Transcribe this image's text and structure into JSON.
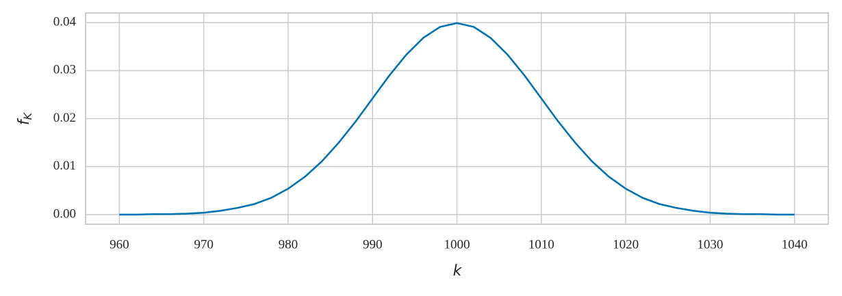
{
  "chart_data": {
    "type": "line",
    "xlabel": "k",
    "ylabel": {
      "base": "f",
      "sub": "K"
    },
    "x": [
      960,
      962,
      964,
      966,
      968,
      970,
      972,
      974,
      976,
      978,
      980,
      982,
      984,
      986,
      988,
      990,
      992,
      994,
      996,
      998,
      1000,
      1002,
      1004,
      1006,
      1008,
      1010,
      1012,
      1014,
      1016,
      1018,
      1020,
      1022,
      1024,
      1026,
      1028,
      1030,
      1032,
      1034,
      1036,
      1038,
      1040
    ],
    "series": [
      {
        "color": "#0173b2",
        "values": [
          0.0,
          0.0,
          0.0001,
          0.0001,
          0.0002,
          0.0004,
          0.0008,
          0.0014,
          0.0022,
          0.0035,
          0.0054,
          0.0079,
          0.0111,
          0.015,
          0.0194,
          0.0242,
          0.029,
          0.0333,
          0.0368,
          0.0391,
          0.0399,
          0.0391,
          0.0368,
          0.0333,
          0.029,
          0.0242,
          0.0194,
          0.015,
          0.0111,
          0.0079,
          0.0054,
          0.0035,
          0.0022,
          0.0014,
          0.0008,
          0.0004,
          0.0002,
          0.0001,
          0.0001,
          0.0,
          0.0
        ]
      }
    ],
    "xlim": [
      956,
      1044
    ],
    "ylim": [
      -0.002,
      0.042
    ],
    "xticks": [
      960,
      970,
      980,
      990,
      1000,
      1010,
      1020,
      1030,
      1040
    ],
    "yticks": [
      {
        "value": 0,
        "label": "0.00"
      },
      {
        "value": 0.01,
        "label": "0.01"
      },
      {
        "value": 0.02,
        "label": "0.02"
      },
      {
        "value": 0.03,
        "label": "0.03"
      },
      {
        "value": 0.04,
        "label": "0.04"
      }
    ],
    "grid": true
  }
}
